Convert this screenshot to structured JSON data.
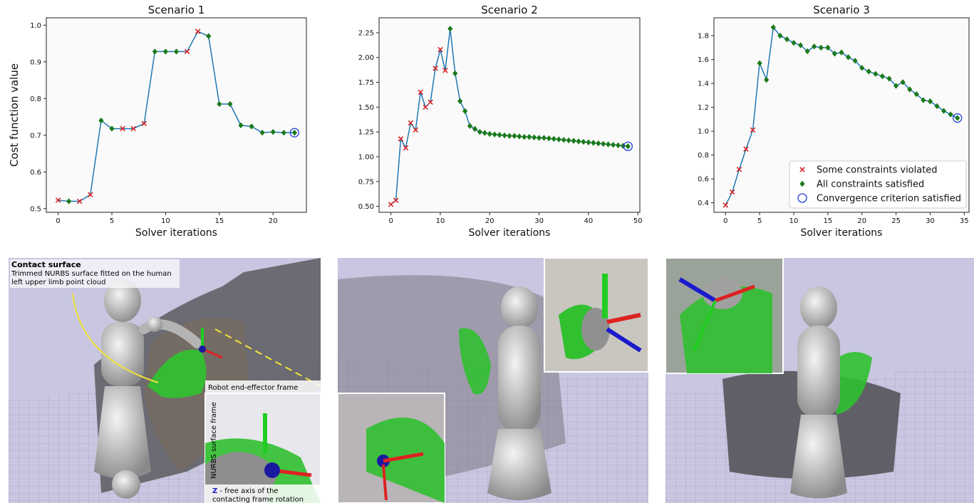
{
  "colors": {
    "line": "#1f77b4",
    "violated": "#d62728",
    "satisfied": "#1a7a1a",
    "converged": "#1f3fdb",
    "scene_bg": "#c8c6e0"
  },
  "chart_data": [
    {
      "type": "line",
      "title": "Scenario 1",
      "xlabel": "Solver iterations",
      "ylabel": "Cost function value",
      "xlim": [
        -1.1,
        23.1
      ],
      "ylim": [
        0.49,
        1.02
      ],
      "xticks": [
        0,
        5,
        10,
        15,
        20
      ],
      "yticks": [
        0.5,
        0.6,
        0.7,
        0.8,
        0.9,
        1.0
      ],
      "ytick_labels": [
        "0.5",
        "0.6",
        "0.7",
        "0.8",
        "0.9",
        "1.0"
      ],
      "x": [
        0,
        1,
        2,
        3,
        4,
        5,
        6,
        7,
        8,
        9,
        10,
        11,
        12,
        13,
        14,
        15,
        16,
        17,
        18,
        19,
        20,
        21,
        22
      ],
      "y": [
        0.523,
        0.52,
        0.52,
        0.538,
        0.74,
        0.718,
        0.718,
        0.718,
        0.732,
        0.928,
        0.928,
        0.928,
        0.928,
        0.983,
        0.97,
        0.785,
        0.785,
        0.727,
        0.724,
        0.707,
        0.709,
        0.707,
        0.707
      ],
      "status": [
        "v",
        "s",
        "v",
        "v",
        "s",
        "s",
        "v",
        "v",
        "v",
        "s",
        "s",
        "s",
        "v",
        "v",
        "s",
        "s",
        "s",
        "s",
        "s",
        "s",
        "s",
        "s",
        "c"
      ]
    },
    {
      "type": "line",
      "title": "Scenario 2",
      "xlabel": "Solver iterations",
      "xlim": [
        -2.4,
        50.4
      ],
      "ylim": [
        0.44,
        2.4
      ],
      "xticks": [
        0,
        10,
        20,
        30,
        40,
        50
      ],
      "yticks": [
        0.5,
        0.75,
        1.0,
        1.25,
        1.5,
        1.75,
        2.0,
        2.25
      ],
      "ytick_labels": [
        "0.50",
        "0.75",
        "1.00",
        "1.25",
        "1.50",
        "1.75",
        "2.00",
        "2.25"
      ],
      "x": [
        0,
        1,
        2,
        3,
        4,
        5,
        6,
        7,
        8,
        9,
        10,
        11,
        12,
        13,
        14,
        15,
        16,
        17,
        18,
        19,
        20,
        21,
        22,
        23,
        24,
        25,
        26,
        27,
        28,
        29,
        30,
        31,
        32,
        33,
        34,
        35,
        36,
        37,
        38,
        39,
        40,
        41,
        42,
        43,
        44,
        45,
        46,
        47,
        48
      ],
      "y": [
        0.52,
        0.56,
        1.18,
        1.09,
        1.34,
        1.27,
        1.65,
        1.5,
        1.55,
        1.89,
        2.08,
        1.87,
        2.29,
        1.84,
        1.56,
        1.46,
        1.31,
        1.28,
        1.25,
        1.24,
        1.23,
        1.225,
        1.22,
        1.215,
        1.21,
        1.21,
        1.205,
        1.2,
        1.2,
        1.195,
        1.19,
        1.19,
        1.185,
        1.18,
        1.175,
        1.17,
        1.165,
        1.16,
        1.155,
        1.15,
        1.145,
        1.14,
        1.135,
        1.13,
        1.125,
        1.12,
        1.115,
        1.11,
        1.105
      ],
      "status": [
        "v",
        "v",
        "v",
        "v",
        "v",
        "v",
        "v",
        "v",
        "v",
        "v",
        "v",
        "v",
        "s",
        "s",
        "s",
        "s",
        "s",
        "s",
        "s",
        "s",
        "s",
        "s",
        "s",
        "s",
        "s",
        "s",
        "s",
        "s",
        "s",
        "s",
        "s",
        "s",
        "s",
        "s",
        "s",
        "s",
        "s",
        "s",
        "s",
        "s",
        "s",
        "s",
        "s",
        "s",
        "s",
        "s",
        "s",
        "s",
        "c"
      ]
    },
    {
      "type": "line",
      "title": "Scenario 3",
      "xlabel": "Solver iterations",
      "xlim": [
        -1.7,
        35.7
      ],
      "ylim": [
        0.32,
        1.95
      ],
      "xticks": [
        0,
        5,
        10,
        15,
        20,
        25,
        30,
        35
      ],
      "yticks": [
        0.4,
        0.6,
        0.8,
        1.0,
        1.2,
        1.4,
        1.6,
        1.8
      ],
      "ytick_labels": [
        "0.4",
        "0.6",
        "0.8",
        "1.0",
        "1.2",
        "1.4",
        "1.6",
        "1.8"
      ],
      "x": [
        0,
        1,
        2,
        3,
        4,
        5,
        6,
        7,
        8,
        9,
        10,
        11,
        12,
        13,
        14,
        15,
        16,
        17,
        18,
        19,
        20,
        21,
        22,
        23,
        24,
        25,
        26,
        27,
        28,
        29,
        30,
        31,
        32,
        33,
        34
      ],
      "y": [
        0.38,
        0.49,
        0.68,
        0.85,
        1.01,
        1.57,
        1.43,
        1.87,
        1.8,
        1.77,
        1.74,
        1.72,
        1.67,
        1.71,
        1.7,
        1.7,
        1.65,
        1.66,
        1.62,
        1.59,
        1.53,
        1.5,
        1.48,
        1.46,
        1.44,
        1.38,
        1.41,
        1.35,
        1.31,
        1.26,
        1.25,
        1.21,
        1.17,
        1.14,
        1.11
      ],
      "status": [
        "v",
        "v",
        "v",
        "v",
        "v",
        "s",
        "s",
        "s",
        "s",
        "s",
        "s",
        "s",
        "s",
        "s",
        "s",
        "s",
        "s",
        "s",
        "s",
        "s",
        "s",
        "s",
        "s",
        "s",
        "s",
        "s",
        "s",
        "s",
        "s",
        "s",
        "s",
        "s",
        "s",
        "s",
        "c"
      ]
    }
  ],
  "legend": {
    "placement": "bottom-right",
    "entries": [
      {
        "label": "Some constraints violated",
        "marker": "x"
      },
      {
        "label": "All constraints satisfied",
        "marker": "diamond"
      },
      {
        "label": "Convergence criterion satisfied",
        "marker": "circle"
      }
    ]
  },
  "annotations": {
    "contact_surface_title": "Contact surface",
    "contact_surface_line1": "Trimmed NURBS surface fitted on the human",
    "contact_surface_line2": "left upper limb point cloud",
    "end_effector": "Robot end-effector frame",
    "nurbs_frame": "NURBS surface frame",
    "z_axis_bold": "Z",
    "z_axis_line1": " - free axis of the",
    "z_axis_line2": "contacting frame rotation"
  }
}
